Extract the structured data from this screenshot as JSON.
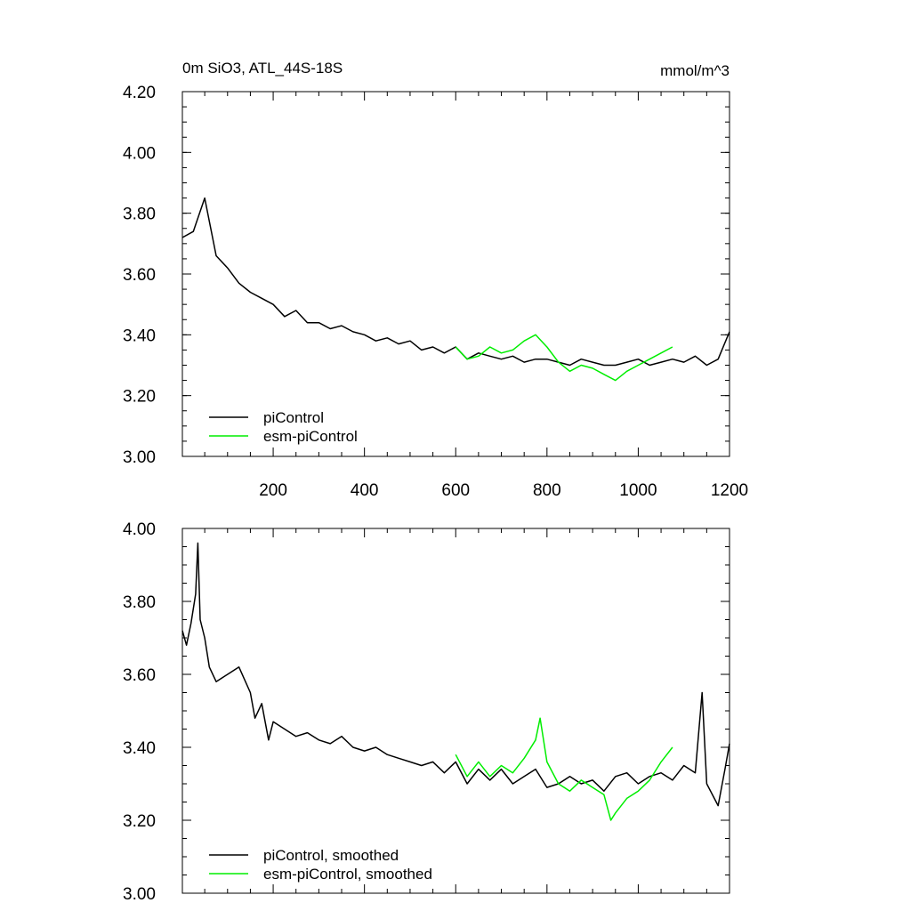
{
  "chart_data": [
    {
      "type": "line",
      "title": "0m SiO3, ATL_44S-18S",
      "units": "mmol/m^3",
      "xlabel": "",
      "ylabel": "",
      "xlim": [
        1,
        1200
      ],
      "ylim": [
        3.0,
        4.2
      ],
      "xticks": [
        200,
        400,
        600,
        800,
        1000,
        1200
      ],
      "xtick_labels": [
        "200",
        "400",
        "600",
        "800",
        "1000",
        "1200"
      ],
      "yticks": [
        3.0,
        3.2,
        3.4,
        3.6,
        3.8,
        4.0,
        4.2
      ],
      "ytick_labels": [
        "3.00",
        "3.20",
        "3.40",
        "3.60",
        "3.80",
        "4.00",
        "4.20"
      ],
      "grid": false,
      "legend_position": "bottom-left",
      "series": [
        {
          "name": "piControl",
          "color": "#000000",
          "x": [
            1,
            25,
            50,
            75,
            100,
            125,
            150,
            175,
            200,
            225,
            250,
            275,
            300,
            325,
            350,
            375,
            400,
            425,
            450,
            475,
            500,
            525,
            550,
            575,
            600,
            625,
            650,
            675,
            700,
            725,
            750,
            775,
            800,
            825,
            850,
            875,
            900,
            925,
            950,
            975,
            1000,
            1025,
            1050,
            1075,
            1100,
            1125,
            1150,
            1175,
            1200
          ],
          "y": [
            3.72,
            3.74,
            3.85,
            3.66,
            3.62,
            3.57,
            3.54,
            3.52,
            3.5,
            3.46,
            3.48,
            3.44,
            3.44,
            3.42,
            3.43,
            3.41,
            3.4,
            3.38,
            3.39,
            3.37,
            3.38,
            3.35,
            3.36,
            3.34,
            3.36,
            3.32,
            3.34,
            3.33,
            3.32,
            3.33,
            3.31,
            3.32,
            3.32,
            3.31,
            3.3,
            3.32,
            3.31,
            3.3,
            3.3,
            3.31,
            3.32,
            3.3,
            3.31,
            3.32,
            3.31,
            3.33,
            3.3,
            3.32,
            3.41
          ]
        },
        {
          "name": "esm-piControl",
          "color": "#00ee00",
          "x": [
            600,
            625,
            650,
            675,
            700,
            725,
            750,
            775,
            800,
            825,
            850,
            875,
            900,
            925,
            950,
            975,
            1000,
            1025,
            1050,
            1075
          ],
          "y": [
            3.36,
            3.32,
            3.33,
            3.36,
            3.34,
            3.35,
            3.38,
            3.4,
            3.36,
            3.31,
            3.28,
            3.3,
            3.29,
            3.27,
            3.25,
            3.28,
            3.3,
            3.32,
            3.34,
            3.36
          ]
        }
      ]
    },
    {
      "type": "line",
      "title": "",
      "xlabel": "",
      "ylabel": "",
      "xlim": [
        1,
        1200
      ],
      "ylim": [
        3.0,
        4.0
      ],
      "xticks": [
        200,
        400,
        600,
        800,
        1000,
        1200
      ],
      "xtick_labels": [],
      "yticks": [
        3.0,
        3.2,
        3.4,
        3.6,
        3.8,
        4.0
      ],
      "ytick_labels": [
        "3.00",
        "3.20",
        "3.40",
        "3.60",
        "3.80",
        "4.00"
      ],
      "grid": false,
      "legend_position": "bottom-left",
      "series": [
        {
          "name": "piControl, smoothed",
          "color": "#000000",
          "x": [
            1,
            10,
            20,
            30,
            35,
            40,
            50,
            60,
            75,
            100,
            125,
            150,
            160,
            175,
            190,
            200,
            225,
            250,
            275,
            300,
            325,
            350,
            375,
            400,
            425,
            450,
            475,
            500,
            525,
            550,
            575,
            600,
            625,
            650,
            675,
            700,
            725,
            750,
            775,
            800,
            825,
            850,
            875,
            900,
            925,
            950,
            975,
            1000,
            1025,
            1050,
            1075,
            1100,
            1125,
            1140,
            1150,
            1175,
            1190,
            1200
          ],
          "y": [
            3.72,
            3.68,
            3.74,
            3.82,
            3.96,
            3.75,
            3.7,
            3.62,
            3.58,
            3.6,
            3.62,
            3.55,
            3.48,
            3.52,
            3.42,
            3.47,
            3.45,
            3.43,
            3.44,
            3.42,
            3.41,
            3.43,
            3.4,
            3.39,
            3.4,
            3.38,
            3.37,
            3.36,
            3.35,
            3.36,
            3.33,
            3.36,
            3.3,
            3.34,
            3.31,
            3.34,
            3.3,
            3.32,
            3.34,
            3.29,
            3.3,
            3.32,
            3.3,
            3.31,
            3.28,
            3.32,
            3.33,
            3.3,
            3.32,
            3.33,
            3.31,
            3.35,
            3.33,
            3.55,
            3.3,
            3.24,
            3.34,
            3.41
          ]
        },
        {
          "name": "esm-piControl, smoothed",
          "color": "#00ee00",
          "x": [
            600,
            625,
            650,
            675,
            700,
            725,
            750,
            775,
            785,
            800,
            825,
            850,
            875,
            900,
            925,
            940,
            950,
            975,
            1000,
            1025,
            1050,
            1075
          ],
          "y": [
            3.38,
            3.32,
            3.36,
            3.32,
            3.35,
            3.33,
            3.37,
            3.42,
            3.48,
            3.36,
            3.3,
            3.28,
            3.31,
            3.29,
            3.27,
            3.2,
            3.22,
            3.26,
            3.28,
            3.31,
            3.36,
            3.4
          ]
        }
      ]
    }
  ]
}
